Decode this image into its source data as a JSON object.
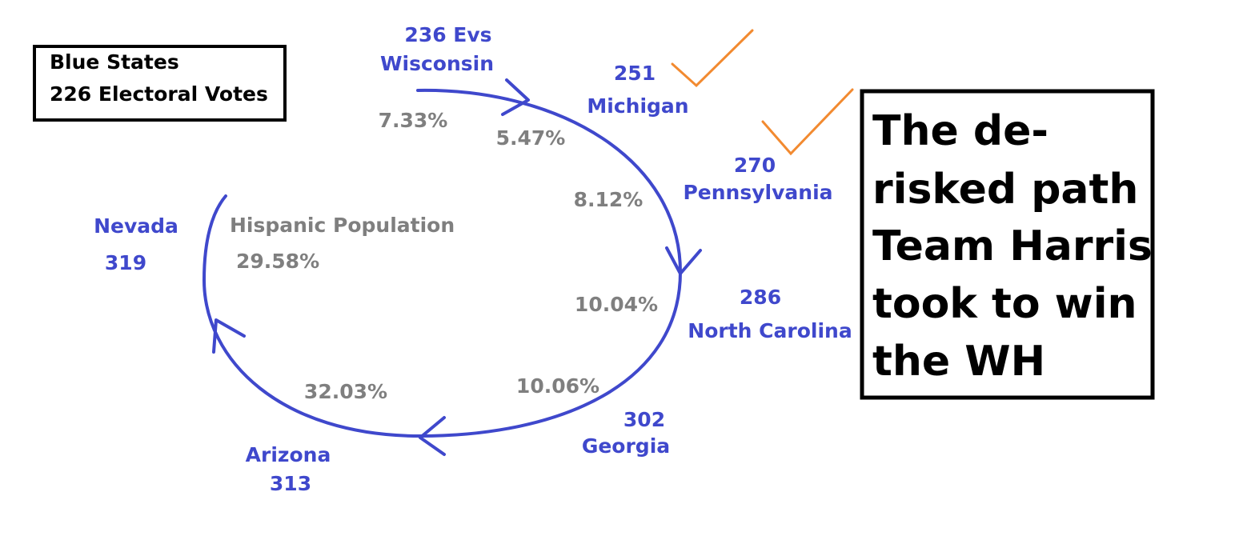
{
  "legend_box": {
    "lines": [
      "Blue States",
      "226 Electoral Votes"
    ]
  },
  "states": [
    {
      "votes": "236 Evs",
      "name": "Wisconsin"
    },
    {
      "votes": "251",
      "name": "Michigan"
    },
    {
      "votes": "270",
      "name": "Pennsylvania"
    },
    {
      "votes": "286",
      "name": "North Carolina"
    },
    {
      "votes": "302",
      "name": "Georgia"
    },
    {
      "votes": "313",
      "name": "Arizona"
    },
    {
      "votes": "319",
      "name": "Nevada"
    }
  ],
  "hispanic_population": {
    "label": "Hispanic Population",
    "values": [
      "7.33%",
      "5.47%",
      "8.12%",
      "10.04%",
      "10.06%",
      "32.03%",
      "29.58%"
    ]
  },
  "callout": {
    "lines": [
      "The de-",
      "risked path",
      "Team Harris",
      "took to win",
      "the WH"
    ]
  }
}
